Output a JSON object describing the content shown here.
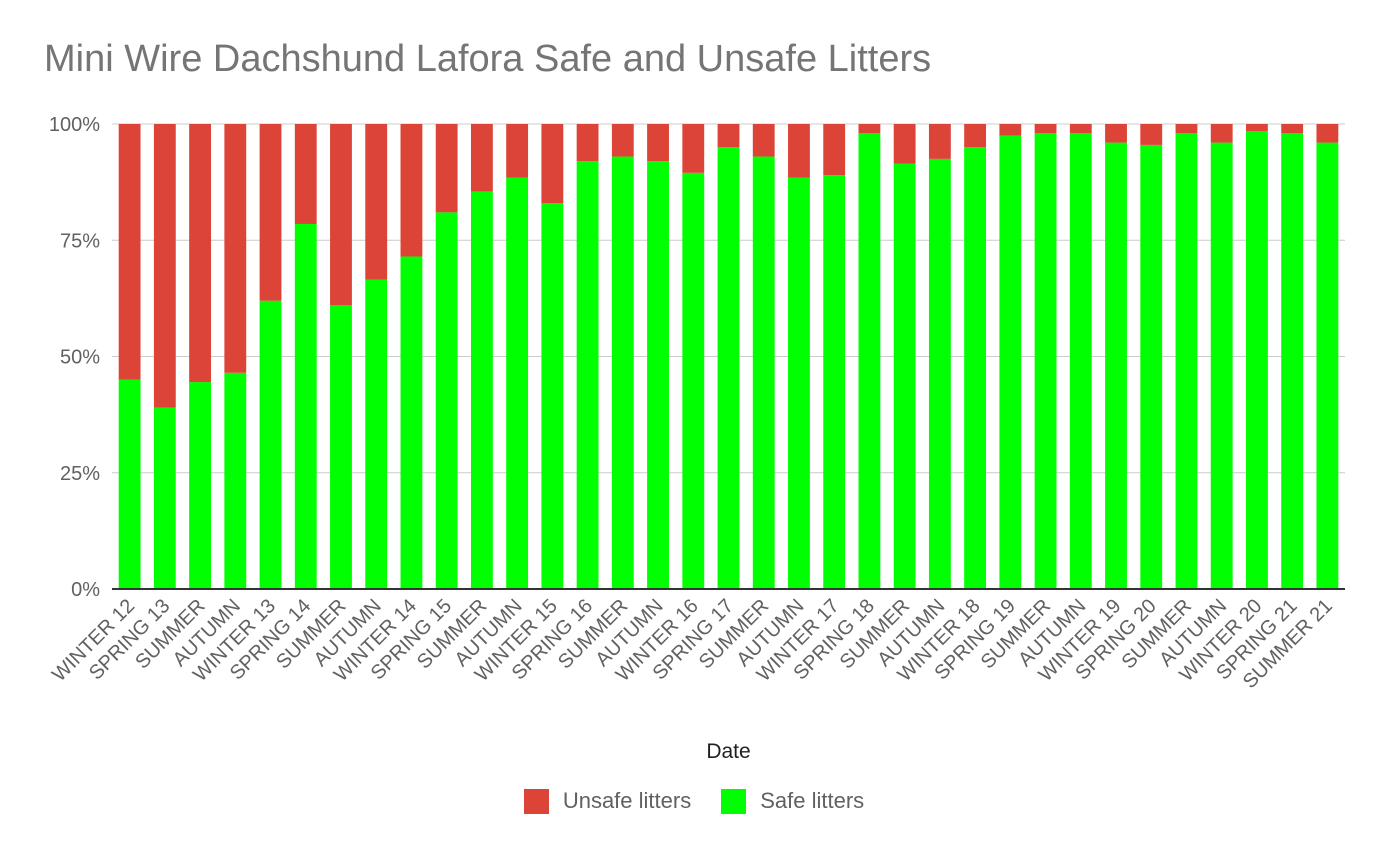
{
  "chart_data": {
    "type": "bar",
    "stacked": true,
    "percent": true,
    "title": "Mini Wire Dachshund Lafora Safe and Unsafe Litters",
    "xlabel": "Date",
    "ylabel": "",
    "ylim": [
      0,
      100
    ],
    "yticks": [
      "0%",
      "25%",
      "50%",
      "75%",
      "100%"
    ],
    "grid": true,
    "legend": "bottom",
    "categories": [
      "WINTER 12",
      "SPRING 13",
      "SUMMER",
      "AUTUMN",
      "WINTER 13",
      "SPRING 14",
      "SUMMER",
      "AUTUMN",
      "WINTER 14",
      "SPRING 15",
      "SUMMER",
      "AUTUMN",
      "WINTER 15",
      "SPRING 16",
      "SUMMER",
      "AUTUMN",
      "WINTER 16",
      "SPRING 17",
      "SUMMER",
      "AUTUMN",
      "WINTER 17",
      "SPRING 18",
      "SUMMER",
      "AUTUMN",
      "WINTER 18",
      "SPRING 19",
      "SUMMER",
      "AUTUMN",
      "WINTER 19",
      "SPRING 20",
      "SUMMER",
      "AUTUMN",
      "WINTER 20",
      "SPRING 21",
      "SUMMER 21"
    ],
    "series": [
      {
        "name": "Unsafe litters",
        "color": "#dc4437",
        "values": [
          55,
          61,
          55.5,
          53.5,
          38,
          21.5,
          39,
          33.5,
          28.5,
          19,
          14.5,
          11.5,
          17,
          8,
          7,
          8,
          10.5,
          5,
          7,
          11.5,
          11,
          2,
          8.5,
          7.5,
          5,
          2.5,
          2,
          2,
          4,
          4.5,
          2,
          4,
          1.5,
          2,
          4
        ]
      },
      {
        "name": "Safe litters",
        "color": "#00ff00",
        "values": [
          45,
          39,
          44.5,
          46.5,
          62,
          78.5,
          61,
          66.5,
          71.5,
          81,
          85.5,
          88.5,
          83,
          92,
          93,
          92,
          89.5,
          95,
          93,
          88.5,
          89,
          98,
          91.5,
          92.5,
          95,
          97.5,
          98,
          98,
          96,
          95.5,
          98,
          96,
          98.5,
          98,
          96
        ]
      }
    ]
  }
}
